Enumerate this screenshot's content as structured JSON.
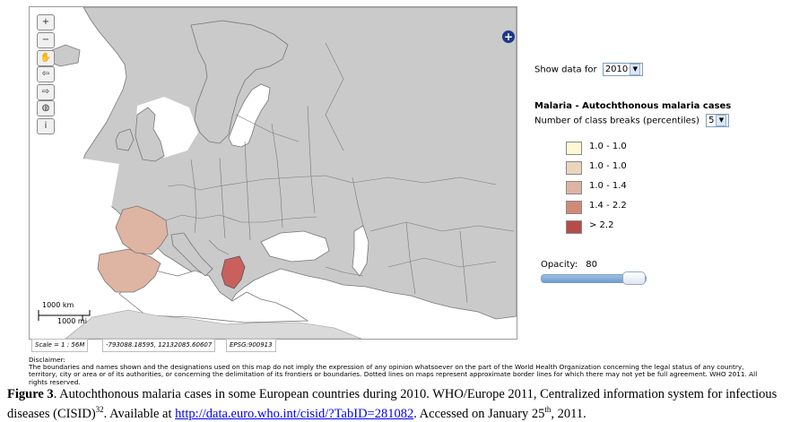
{
  "map": {
    "tools": [
      {
        "icon": "zoom-in-icon",
        "glyph": "+"
      },
      {
        "icon": "zoom-out-icon",
        "glyph": "−"
      },
      {
        "icon": "pan-hand-icon",
        "glyph": "✋"
      },
      {
        "icon": "back-arrow-icon",
        "glyph": "⇦"
      },
      {
        "icon": "forward-arrow-icon",
        "glyph": "⇨"
      },
      {
        "icon": "globe-icon",
        "glyph": "◍"
      },
      {
        "icon": "info-icon",
        "glyph": "i"
      }
    ],
    "expand_icon": "+",
    "scalebar": {
      "km": "1000 km",
      "mi": "1000 mi"
    },
    "colors": {
      "sea": "#ffffff",
      "land": "#cacaca",
      "border": "#777777",
      "france": "#deb4a3",
      "spain": "#deb4a3",
      "greece": "#c9605d"
    }
  },
  "status": {
    "scale": "Scale = 1 : 56M",
    "coords": "-793088.18595, 12132085.60607",
    "epsg": "EPSG:900913"
  },
  "panel": {
    "show_data_label": "Show data for",
    "year": "2010",
    "title": "Malaria - Autochthonous malaria cases",
    "breaks_label": "Number of class breaks (percentiles)",
    "breaks_value": "5",
    "legend": [
      {
        "label": "1.0 - 1.0",
        "color": "#fdf8d6"
      },
      {
        "label": "1.0 - 1.0",
        "color": "#ecd4bc"
      },
      {
        "label": "1.0 - 1.4",
        "color": "#deb4a3"
      },
      {
        "label": "1.4 - 2.2",
        "color": "#cf8a78"
      },
      {
        "label": "> 2.2",
        "color": "#b64c4a"
      }
    ],
    "opacity_label": "Opacity:",
    "opacity_value": "80",
    "opacity_level": 0.8
  },
  "disclaimer": {
    "heading": "Disclaimer:",
    "text": "The boundaries and names shown and the designations used on this map do not imply the expression of any opinion whatsoever on the part of the World Health Organization concerning the legal status of any country, territory, city or area or of its authorities, or concerning the delimitation of its frontiers or boundaries. Dotted lines on maps represent approximate border lines for which there may not yet be full agreement. WHO 2011. All rights reserved."
  },
  "caption": {
    "label": "Figure 3",
    "text1": ". Autochthonous malaria cases in some European countries during 2010. WHO/Europe 2011, Centralized information system for infectious diseases (CISID)",
    "ref": "32",
    "text2": ". Available at ",
    "link": "http://data.euro.who.int/cisid/?TabID=281082",
    "text3": ". Accessed on January 25",
    "sup": "th",
    "text4": ", 2011."
  }
}
